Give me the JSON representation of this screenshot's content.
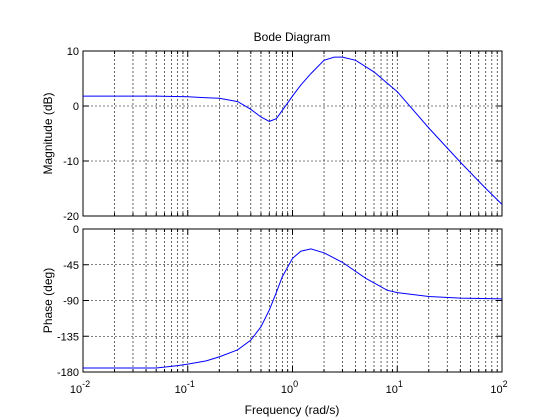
{
  "chart_data": {
    "type": "line",
    "title": "Bode Diagram",
    "xlabel": "Frequency  (rad/s)",
    "x_scale": "log",
    "xlim": [
      0.01,
      100
    ],
    "x_ticks": [
      {
        "value": 0.01,
        "base": "10",
        "exp": "-2"
      },
      {
        "value": 0.1,
        "base": "10",
        "exp": "-1"
      },
      {
        "value": 1,
        "base": "10",
        "exp": "0"
      },
      {
        "value": 10,
        "base": "10",
        "exp": "1"
      },
      {
        "value": 100,
        "base": "10",
        "exp": "2"
      }
    ],
    "grid": true,
    "line_color": "#0000ff",
    "axes_color": "#000000",
    "panels": [
      {
        "id": "magnitude",
        "ylabel": "Magnitude (dB)",
        "ylim": [
          -20,
          10
        ],
        "y_ticks": [
          {
            "value": 10,
            "label": "10"
          },
          {
            "value": 0,
            "label": "0"
          },
          {
            "value": -10,
            "label": "-10"
          },
          {
            "value": -20,
            "label": "-20"
          }
        ],
        "x": [
          0.01,
          0.02,
          0.05,
          0.1,
          0.15,
          0.2,
          0.3,
          0.4,
          0.5,
          0.6,
          0.7,
          0.8,
          1.0,
          1.2,
          1.5,
          2.0,
          2.5,
          3.0,
          4.0,
          6.0,
          10,
          20,
          40,
          70,
          100
        ],
        "y": [
          1.8,
          1.8,
          1.8,
          1.7,
          1.5,
          1.4,
          0.8,
          -0.6,
          -2.0,
          -2.8,
          -2.3,
          -0.8,
          1.8,
          3.8,
          5.9,
          8.3,
          8.9,
          8.9,
          8.3,
          6.2,
          2.6,
          -4.0,
          -10.2,
          -15.0,
          -17.9
        ]
      },
      {
        "id": "phase",
        "ylabel": "Phase (deg)",
        "ylim": [
          -180,
          0
        ],
        "y_ticks": [
          {
            "value": 0,
            "label": "0"
          },
          {
            "value": -45,
            "label": "-45"
          },
          {
            "value": -90,
            "label": "-90"
          },
          {
            "value": -135,
            "label": "-135"
          },
          {
            "value": -180,
            "label": "-180"
          }
        ],
        "x": [
          0.01,
          0.02,
          0.05,
          0.08,
          0.1,
          0.15,
          0.2,
          0.3,
          0.4,
          0.5,
          0.6,
          0.7,
          0.8,
          1.0,
          1.2,
          1.5,
          2.0,
          3.0,
          5.0,
          8.0,
          10,
          20,
          40,
          100
        ],
        "y": [
          -175,
          -175,
          -175,
          -172,
          -170,
          -166,
          -161,
          -152,
          -140,
          -123,
          -102,
          -80,
          -60,
          -37,
          -28,
          -25,
          -30,
          -42,
          -62,
          -77,
          -80,
          -85,
          -87,
          -88
        ]
      }
    ]
  }
}
